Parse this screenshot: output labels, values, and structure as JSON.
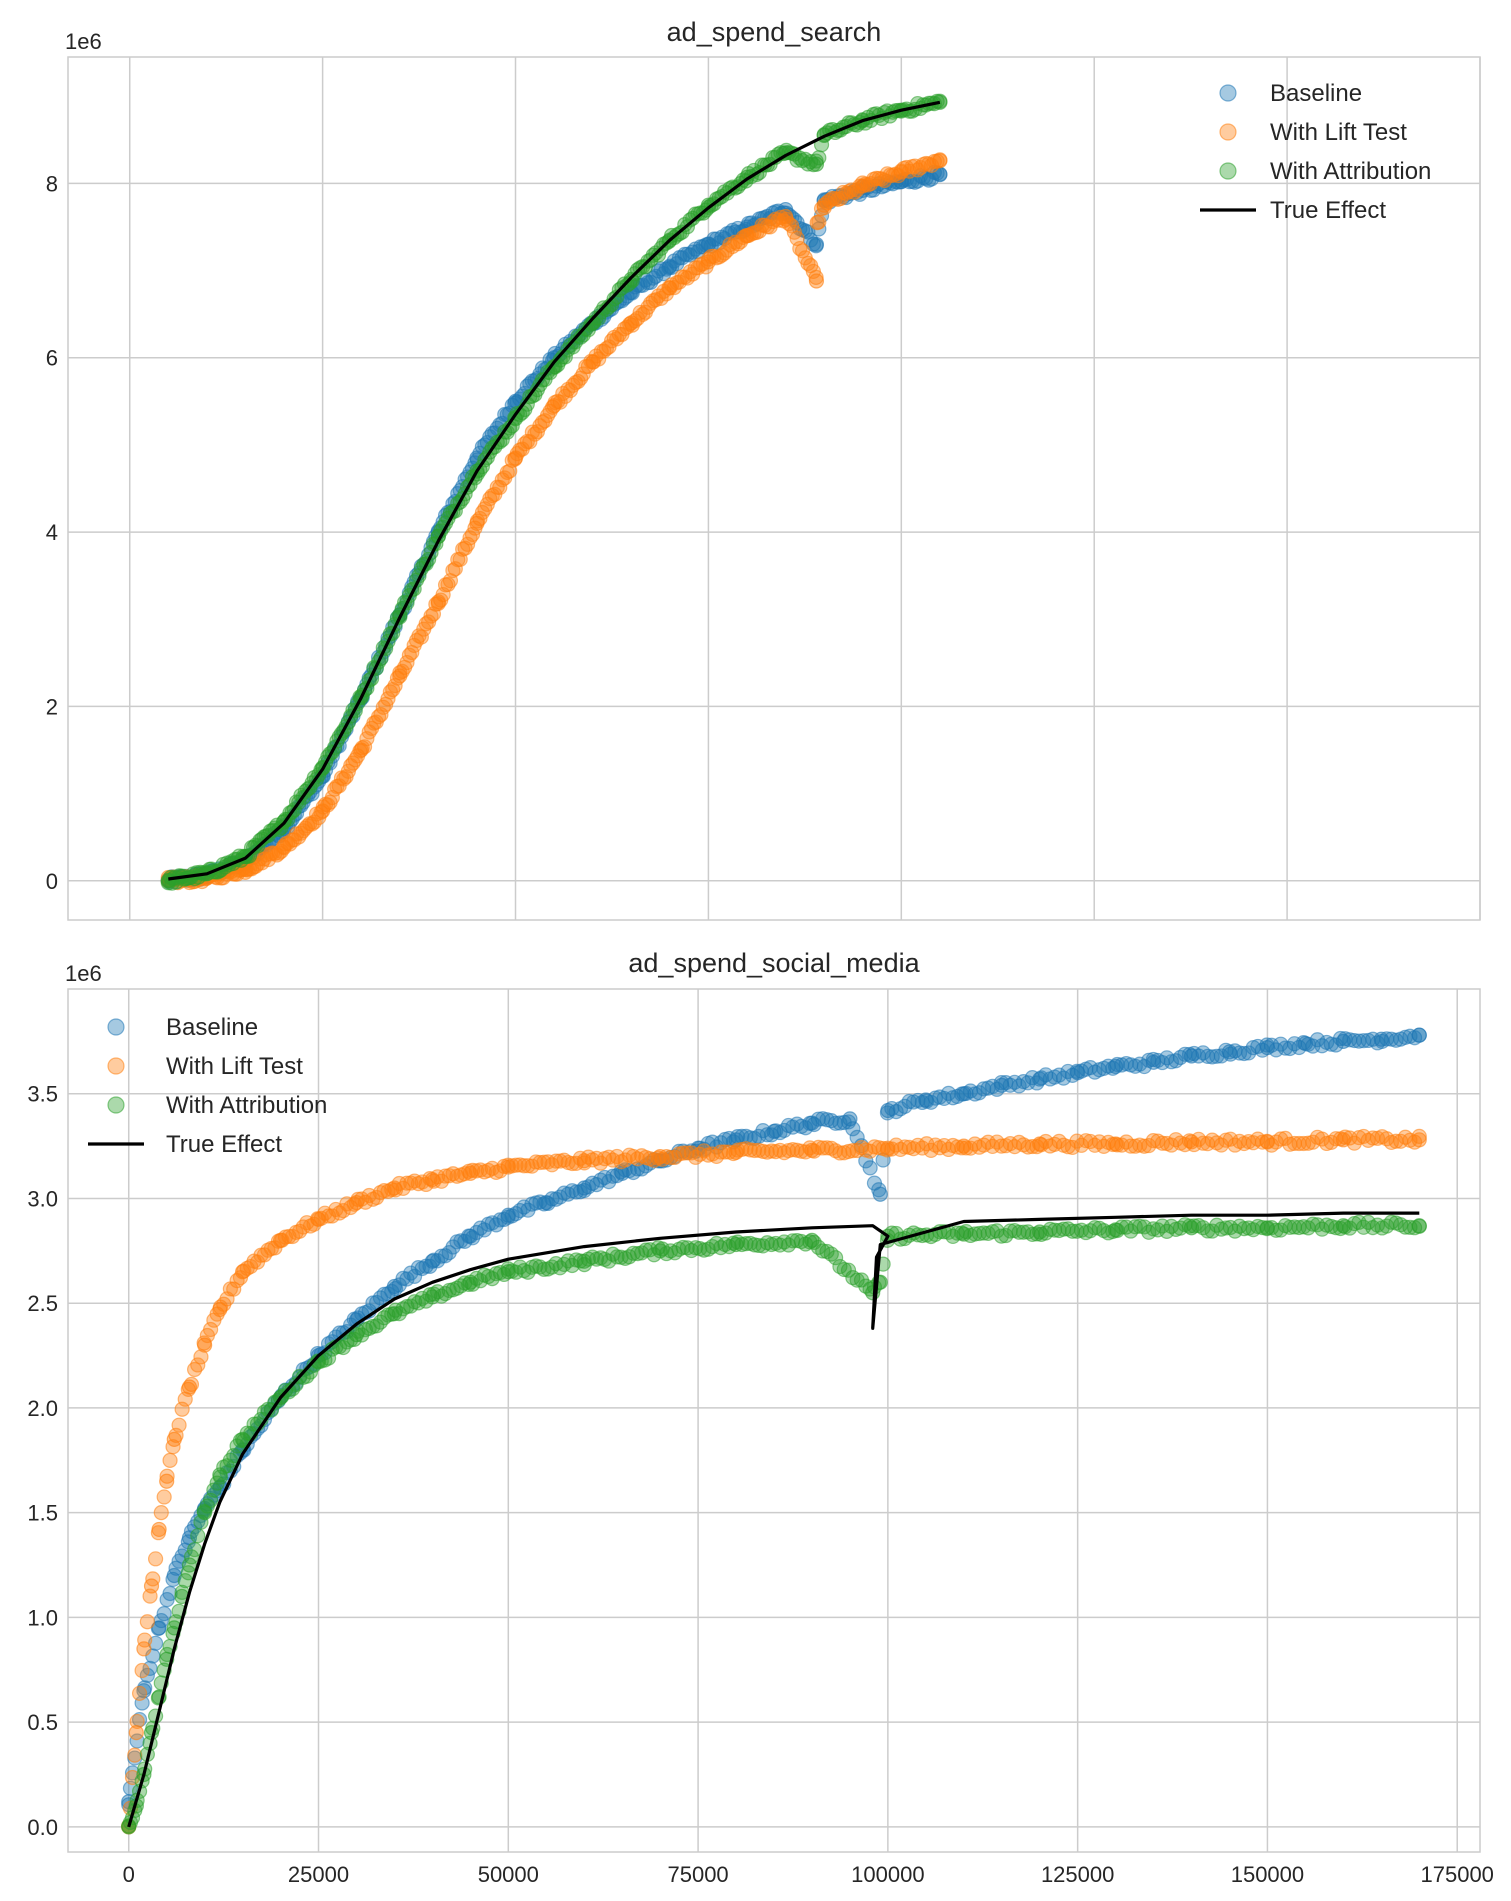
{
  "colors": {
    "baseline": "#1f77b4",
    "lift": "#ff7f0e",
    "attribution": "#2ca02c",
    "true_effect": "#000000",
    "grid": "#cccccc",
    "frame": "#cccccc"
  },
  "chart_data": [
    {
      "type": "scatter",
      "title": "ad_spend_search",
      "offset_label": "1e6",
      "xlabel": "",
      "ylabel": "",
      "xlim": [
        -8000,
        175000
      ],
      "ylim": [
        -0.45,
        9.45
      ],
      "xticks": [
        0,
        25000,
        50000,
        75000,
        100000,
        125000,
        150000,
        175000
      ],
      "xtick_labels_visible": false,
      "yticks": [
        0,
        2,
        4,
        6,
        8
      ],
      "ytick_labels": [
        "0",
        "2",
        "4",
        "6",
        "8"
      ],
      "grid": true,
      "legend": {
        "position": "top-right",
        "entries": [
          "Baseline",
          "With Lift Test",
          "With Attribution",
          "True Effect"
        ]
      },
      "series": [
        {
          "name": "Baseline",
          "kind": "scatter",
          "color_key": "baseline",
          "x": [
            5000,
            10000,
            15000,
            20000,
            25000,
            30000,
            35000,
            40000,
            45000,
            50000,
            55000,
            60000,
            65000,
            70000,
            75000,
            80000,
            85000,
            89000,
            90000,
            95000,
            100000,
            105000
          ],
          "y": [
            0.0,
            0.06,
            0.22,
            0.6,
            1.2,
            2.1,
            3.05,
            4.0,
            4.85,
            5.5,
            6.0,
            6.4,
            6.75,
            7.05,
            7.3,
            7.5,
            7.7,
            7.3,
            7.8,
            7.92,
            8.02,
            8.1
          ]
        },
        {
          "name": "With Lift Test",
          "kind": "scatter",
          "color_key": "lift",
          "x": [
            5000,
            10000,
            15000,
            20000,
            25000,
            30000,
            35000,
            40000,
            45000,
            50000,
            55000,
            60000,
            65000,
            70000,
            75000,
            80000,
            85000,
            89000,
            89100,
            90000,
            95000,
            100000,
            105000
          ],
          "y": [
            0.0,
            0.03,
            0.13,
            0.38,
            0.8,
            1.5,
            2.35,
            3.2,
            4.1,
            4.85,
            5.45,
            5.95,
            6.4,
            6.8,
            7.1,
            7.4,
            7.62,
            6.88,
            7.55,
            7.75,
            7.97,
            8.13,
            8.27
          ]
        },
        {
          "name": "With Attribution",
          "kind": "scatter",
          "color_key": "attribution",
          "x": [
            5000,
            10000,
            15000,
            20000,
            25000,
            30000,
            35000,
            40000,
            45000,
            50000,
            55000,
            60000,
            65000,
            70000,
            75000,
            80000,
            85000,
            89000,
            90000,
            95000,
            100000,
            105000
          ],
          "y": [
            0.0,
            0.08,
            0.28,
            0.68,
            1.3,
            2.1,
            3.05,
            3.95,
            4.7,
            5.3,
            5.9,
            6.4,
            6.9,
            7.35,
            7.75,
            8.07,
            8.35,
            8.22,
            8.55,
            8.72,
            8.84,
            8.93
          ]
        },
        {
          "name": "True Effect",
          "kind": "line",
          "color_key": "true_effect",
          "x": [
            5000,
            10000,
            15000,
            20000,
            25000,
            30000,
            35000,
            40000,
            45000,
            50000,
            55000,
            60000,
            65000,
            70000,
            75000,
            80000,
            85000,
            90000,
            95000,
            100000,
            105000
          ],
          "y": [
            0.02,
            0.08,
            0.26,
            0.66,
            1.28,
            2.1,
            3.02,
            3.9,
            4.7,
            5.35,
            5.95,
            6.45,
            6.92,
            7.35,
            7.72,
            8.05,
            8.32,
            8.54,
            8.72,
            8.84,
            8.93
          ]
        }
      ]
    },
    {
      "type": "scatter",
      "title": "ad_spend_social_media",
      "offset_label": "1e6",
      "xlabel": "",
      "ylabel": "",
      "xlim": [
        -8000,
        178000
      ],
      "ylim": [
        -0.12,
        4.0
      ],
      "xticks": [
        0,
        25000,
        50000,
        75000,
        100000,
        125000,
        150000,
        175000
      ],
      "xtick_labels": [
        "0",
        "25000",
        "50000",
        "75000",
        "100000",
        "125000",
        "150000",
        "175000"
      ],
      "yticks": [
        0.0,
        0.5,
        1.0,
        1.5,
        2.0,
        2.5,
        3.0,
        3.5
      ],
      "ytick_labels": [
        "0.0",
        "0.5",
        "1.0",
        "1.5",
        "2.0",
        "2.5",
        "3.0",
        "3.5"
      ],
      "grid": true,
      "legend": {
        "position": "top-left",
        "entries": [
          "Baseline",
          "With Lift Test",
          "With Attribution",
          "True Effect"
        ]
      },
      "series": [
        {
          "name": "Baseline",
          "kind": "scatter",
          "color_key": "baseline",
          "x": [
            0,
            2000,
            4000,
            6000,
            8000,
            10000,
            12000,
            15000,
            20000,
            25000,
            30000,
            35000,
            40000,
            45000,
            50000,
            55000,
            60000,
            65000,
            70000,
            75000,
            80000,
            85000,
            90000,
            95000,
            99000,
            100000,
            105000,
            110000,
            115000,
            120000,
            125000,
            130000,
            135000,
            140000,
            145000,
            150000,
            155000,
            160000,
            165000,
            170000
          ],
          "y": [
            0.12,
            0.65,
            0.95,
            1.2,
            1.38,
            1.52,
            1.62,
            1.8,
            2.05,
            2.25,
            2.42,
            2.58,
            2.7,
            2.82,
            2.92,
            2.98,
            3.05,
            3.12,
            3.18,
            3.24,
            3.28,
            3.32,
            3.36,
            3.38,
            3.02,
            3.42,
            3.47,
            3.5,
            3.54,
            3.57,
            3.6,
            3.63,
            3.65,
            3.68,
            3.7,
            3.72,
            3.74,
            3.75,
            3.76,
            3.78
          ]
        },
        {
          "name": "With Lift Test",
          "kind": "scatter",
          "color_key": "lift",
          "x": [
            0,
            1000,
            2000,
            3000,
            4000,
            5000,
            6000,
            8000,
            10000,
            12000,
            15000,
            20000,
            25000,
            30000,
            35000,
            40000,
            45000,
            50000,
            60000,
            70000,
            80000,
            90000,
            100000,
            110000,
            120000,
            130000,
            140000,
            150000,
            160000,
            170000
          ],
          "y": [
            0.0,
            0.45,
            0.85,
            1.15,
            1.42,
            1.65,
            1.85,
            2.1,
            2.3,
            2.47,
            2.65,
            2.8,
            2.9,
            2.98,
            3.05,
            3.09,
            3.12,
            3.15,
            3.18,
            3.2,
            3.22,
            3.23,
            3.24,
            3.25,
            3.26,
            3.26,
            3.27,
            3.27,
            3.28,
            3.28
          ]
        },
        {
          "name": "With Attribution",
          "kind": "scatter",
          "color_key": "attribution",
          "x": [
            0,
            1000,
            2000,
            3000,
            4000,
            5000,
            6000,
            7000,
            8000,
            10000,
            12000,
            15000,
            20000,
            25000,
            30000,
            35000,
            40000,
            45000,
            50000,
            60000,
            70000,
            80000,
            90000,
            98000,
            99000,
            100000,
            110000,
            120000,
            130000,
            140000,
            150000,
            160000,
            170000
          ],
          "y": [
            0.0,
            0.1,
            0.25,
            0.45,
            0.62,
            0.8,
            0.95,
            1.1,
            1.25,
            1.5,
            1.68,
            1.85,
            2.05,
            2.22,
            2.35,
            2.45,
            2.53,
            2.6,
            2.65,
            2.7,
            2.75,
            2.78,
            2.8,
            2.55,
            2.6,
            2.82,
            2.83,
            2.84,
            2.85,
            2.86,
            2.86,
            2.87,
            2.87
          ]
        },
        {
          "name": "True Effect",
          "kind": "line",
          "color_key": "true_effect",
          "x": [
            0,
            2000,
            4000,
            6000,
            8000,
            10000,
            12000,
            15000,
            20000,
            25000,
            30000,
            35000,
            40000,
            45000,
            50000,
            60000,
            70000,
            80000,
            90000,
            98000,
            100000,
            98500,
            98000,
            99000,
            110000,
            120000,
            130000,
            140000,
            150000,
            160000,
            170000
          ],
          "y": [
            0.0,
            0.25,
            0.55,
            0.85,
            1.12,
            1.35,
            1.55,
            1.78,
            2.05,
            2.25,
            2.4,
            2.52,
            2.6,
            2.66,
            2.71,
            2.77,
            2.81,
            2.84,
            2.86,
            2.87,
            2.82,
            2.72,
            2.38,
            2.78,
            2.89,
            2.9,
            2.91,
            2.92,
            2.92,
            2.93,
            2.93
          ]
        }
      ]
    }
  ]
}
